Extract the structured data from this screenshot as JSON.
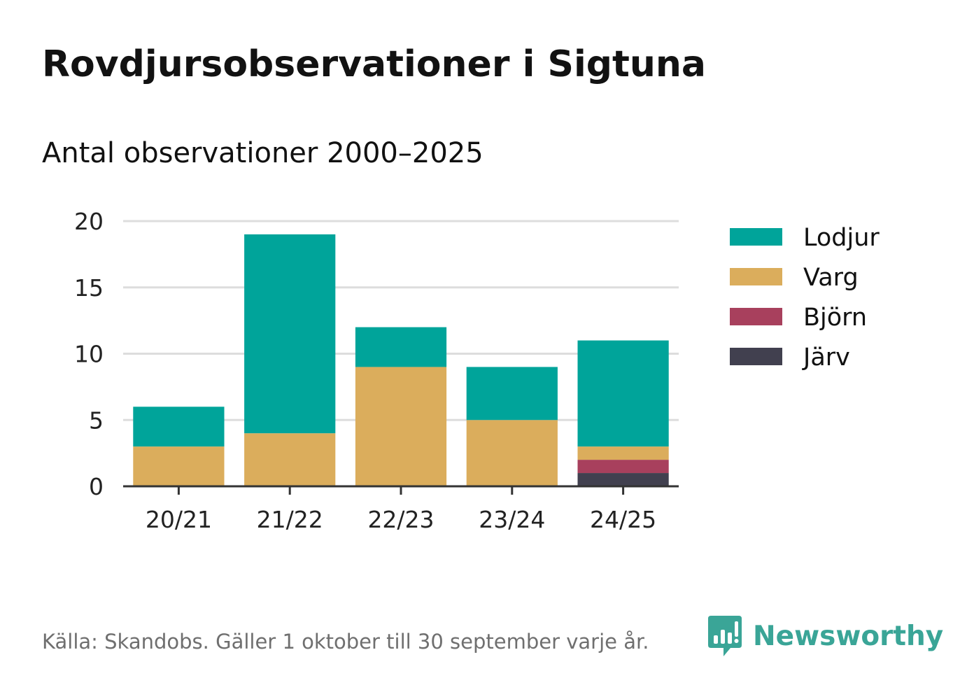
{
  "title": "Rovdjursobservationer i Sigtuna",
  "subtitle": "Antal observationer 2000–2025",
  "source": "Källa: Skandobs. Gäller 1 oktober till 30 september varje år.",
  "brand": {
    "name": "Newsworthy",
    "icon": "newsworthy-logo-icon",
    "color": "#3aa597"
  },
  "chart_data": {
    "type": "bar",
    "stacked": true,
    "categories": [
      "20/21",
      "21/22",
      "22/23",
      "23/24",
      "24/25"
    ],
    "series": [
      {
        "name": "Järv",
        "color": "#41404f",
        "values": [
          0,
          0,
          0,
          0,
          1
        ]
      },
      {
        "name": "Björn",
        "color": "#a8405d",
        "values": [
          0,
          0,
          0,
          0,
          1
        ]
      },
      {
        "name": "Varg",
        "color": "#dbad5c",
        "values": [
          3,
          4,
          9,
          5,
          1
        ]
      },
      {
        "name": "Lodjur",
        "color": "#00a49a",
        "values": [
          3,
          15,
          3,
          4,
          8
        ]
      }
    ],
    "legend_order": [
      "Lodjur",
      "Varg",
      "Björn",
      "Järv"
    ],
    "legend_position": "right",
    "ylim": [
      0,
      20
    ],
    "yticks": [
      0,
      5,
      10,
      15,
      20
    ],
    "grid": true,
    "xlabel": "",
    "ylabel": ""
  }
}
